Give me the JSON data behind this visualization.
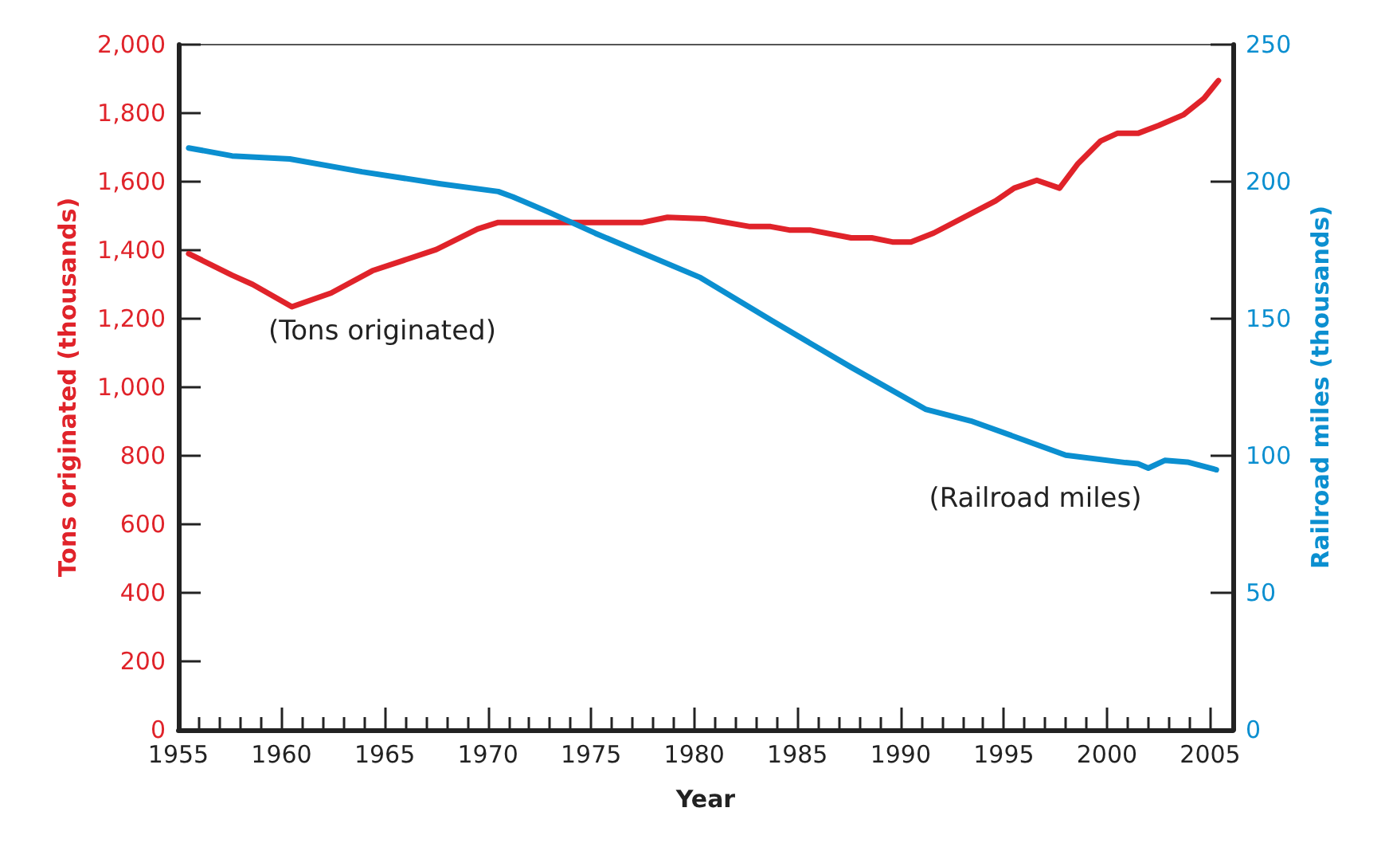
{
  "chart_data": {
    "type": "line",
    "xlabel": "Year",
    "ylabel": "Tons originated (thousands)",
    "y2label": "Railroad miles (thousands)",
    "xlim": [
      1955,
      2006.1
    ],
    "xticks": [
      1955,
      {
        "value": 1956,
        "label": null
      },
      {
        "value": 1957,
        "label": null
      },
      {
        "value": 1958,
        "label": null
      },
      {
        "value": 1959,
        "label": null
      },
      1960,
      {
        "value": 1961,
        "label": null
      },
      {
        "value": 1962,
        "label": null
      },
      {
        "value": 1963,
        "label": null
      },
      {
        "value": 1964,
        "label": null
      },
      1965,
      {
        "value": 1966,
        "label": null
      },
      {
        "value": 1967,
        "label": null
      },
      {
        "value": 1968,
        "label": null
      },
      {
        "value": 1969,
        "label": null
      },
      1970,
      {
        "value": 1971,
        "label": null
      },
      {
        "value": 1972,
        "label": null
      },
      {
        "value": 1973,
        "label": null
      },
      {
        "value": 1974,
        "label": null
      },
      1975,
      {
        "value": 1976,
        "label": null
      },
      {
        "value": 1977,
        "label": null
      },
      {
        "value": 1978,
        "label": null
      },
      {
        "value": 1979,
        "label": null
      },
      1980,
      {
        "value": 1981,
        "label": null
      },
      {
        "value": 1982,
        "label": null
      },
      {
        "value": 1983,
        "label": null
      },
      {
        "value": 1984,
        "label": null
      },
      1985,
      {
        "value": 1986,
        "label": null
      },
      {
        "value": 1987,
        "label": null
      },
      {
        "value": 1988,
        "label": null
      },
      {
        "value": 1989,
        "label": null
      },
      1990,
      {
        "value": 1991,
        "label": null
      },
      {
        "value": 1992,
        "label": null
      },
      {
        "value": 1993,
        "label": null
      },
      {
        "value": 1994,
        "label": null
      },
      1995,
      {
        "value": 1996,
        "label": null
      },
      {
        "value": 1997,
        "label": null
      },
      {
        "value": 1998,
        "label": null
      },
      {
        "value": 1999,
        "label": null
      },
      2000,
      {
        "value": 2001,
        "label": null
      },
      {
        "value": 2002,
        "label": null
      },
      {
        "value": 2003,
        "label": null
      },
      {
        "value": 2004,
        "label": null
      },
      2005
    ],
    "ylim": [
      0,
      2000
    ],
    "yticks": [
      0,
      200,
      400,
      600,
      800,
      {
        "value": 1000,
        "label": "1,000"
      },
      {
        "value": 1200,
        "label": "1,200"
      },
      {
        "value": 1400,
        "label": "1,400"
      },
      {
        "value": 1600,
        "label": "1,600"
      },
      {
        "value": 1800,
        "label": "1,800"
      },
      {
        "value": 2000,
        "label": "2,000"
      }
    ],
    "y2lim": [
      0,
      250
    ],
    "y2ticks": [
      0,
      50,
      100,
      150,
      200,
      250
    ],
    "grid": false,
    "marker": "none",
    "line_style": "solid",
    "series": [
      {
        "color": "#e0232a",
        "x": [
          1955.5,
          1957.6,
          1958.6,
          1960.5,
          1962.4,
          1964.4,
          1967.5,
          1969.5,
          1970.5,
          1977.5,
          1978.7,
          1980.5,
          1982.7,
          1983.7,
          1984.6,
          1985.6,
          1987.6,
          1988.6,
          1989.6,
          1990.5,
          1991.6,
          1994.6,
          1995.5,
          1996.6,
          1997.7,
          1998.6,
          1999.7,
          2000.5,
          2001.5,
          2002.5,
          2003.7,
          2004.7,
          2005.4
        ],
        "values": [
          1390,
          1327,
          1300,
          1235,
          1275,
          1340,
          1402,
          1462,
          1481,
          1481,
          1496,
          1492,
          1469,
          1469,
          1459,
          1459,
          1436,
          1436,
          1424,
          1424,
          1450,
          1544,
          1581,
          1604,
          1581,
          1653,
          1719,
          1741,
          1741,
          1764,
          1795,
          1843,
          1895
        ]
      },
      {
        "color": "#0b8fd0",
        "axis": "y2",
        "x": [
          1955.5,
          1957.6,
          1960.4,
          1963.9,
          1967.7,
          1970.5,
          1971.2,
          1973.0,
          1975.2,
          1980.3,
          1983.8,
          1987.6,
          1991.2,
          1993.4,
          1996.4,
          1998.0,
          2000.9,
          2001.5,
          2002.0,
          2002.8,
          2003.9,
          2005.3
        ],
        "values": [
          212.3,
          209.4,
          208.3,
          203.6,
          199.2,
          196.4,
          194.5,
          188.7,
          181.2,
          165.0,
          149.1,
          132.3,
          117.0,
          112.7,
          104.6,
          100.2,
          97.5,
          97.1,
          95.5,
          98.3,
          97.7,
          94.9
        ]
      }
    ],
    "annotations": [
      "(Tons originated)",
      "(Railroad miles)"
    ]
  }
}
